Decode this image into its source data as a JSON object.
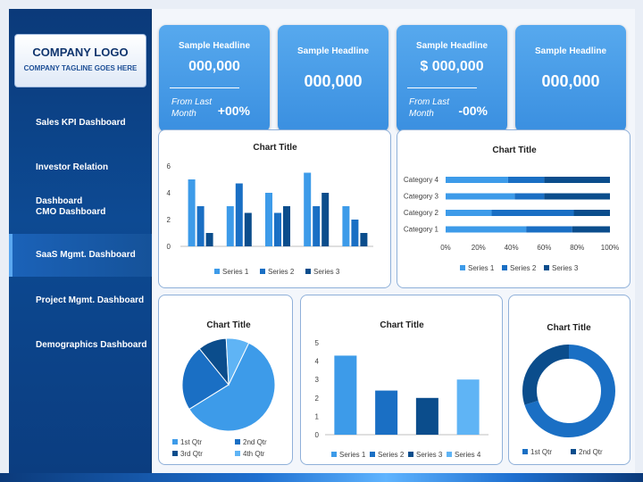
{
  "logo": {
    "title": "COMPANY LOGO",
    "tagline": "COMPANY TAGLINE GOES HERE"
  },
  "nav": [
    {
      "label": "Sales KPI Dashboard",
      "active": false
    },
    {
      "label": "Investor Relation Dashboard",
      "active": false
    },
    {
      "label": "CMO Dashboard",
      "active": false
    },
    {
      "label": "SaaS Mgmt. Dashboard",
      "active": true
    },
    {
      "label": "Project Mgmt. Dashboard",
      "active": false
    },
    {
      "label": "Demographics Dashboard",
      "active": false
    }
  ],
  "kpis": [
    {
      "headline": "Sample Headline",
      "value": "000,000",
      "sub": "From Last Month",
      "change": "+00%"
    },
    {
      "headline": "Sample Headline",
      "value": "000,000"
    },
    {
      "headline": "Sample Headline",
      "value": "$ 000,000",
      "sub": "From Last Month",
      "change": "-00%"
    },
    {
      "headline": "Sample Headline",
      "value": "000,000"
    }
  ],
  "colors": {
    "series1": "#3d9be9",
    "series2": "#1a6fc4",
    "series3": "#0b4d8c",
    "series4": "#5fb4f5"
  },
  "chart_data": [
    {
      "type": "bar",
      "title": "Chart Title",
      "categories": [
        "",
        "",
        "",
        "",
        ""
      ],
      "series": [
        {
          "name": "Series 1",
          "values": [
            5,
            3,
            4,
            5.5,
            3
          ]
        },
        {
          "name": "Series 2",
          "values": [
            3,
            4.7,
            2.5,
            3,
            2
          ]
        },
        {
          "name": "Series 3",
          "values": [
            1,
            2.5,
            3,
            4,
            1
          ]
        }
      ],
      "ylim": [
        0,
        6
      ],
      "yticks": [
        "0",
        "2",
        "4",
        "6"
      ],
      "legend": "bottom"
    },
    {
      "type": "bar",
      "orientation": "horizontal-stacked-100",
      "title": "Chart Title",
      "categories": [
        "Category 1",
        "Category 2",
        "Category 3",
        "Category 4"
      ],
      "series": [
        {
          "name": "Series 1",
          "values": [
            49,
            28,
            42,
            38
          ]
        },
        {
          "name": "Series 2",
          "values": [
            28,
            50,
            18,
            22
          ]
        },
        {
          "name": "Series 3",
          "values": [
            23,
            22,
            40,
            40
          ]
        }
      ],
      "xticks": [
        "0%",
        "20%",
        "40%",
        "60%",
        "80%",
        "100%"
      ],
      "legend": "bottom"
    },
    {
      "type": "pie",
      "title": "Chart Title",
      "labels": [
        "1st Qtr",
        "2nd Qtr",
        "3rd Qtr",
        "4th Qtr"
      ],
      "values": [
        59,
        23,
        10,
        8
      ],
      "legend": "bottom"
    },
    {
      "type": "bar",
      "title": "Chart Title",
      "categories": [
        "Series 1",
        "Series 2",
        "Series 3",
        "Series 4"
      ],
      "values": [
        4.3,
        2.4,
        2,
        3
      ],
      "ylim": [
        0,
        5
      ],
      "yticks": [
        "0",
        "1",
        "2",
        "3",
        "4",
        "5"
      ],
      "legend": "bottom"
    },
    {
      "type": "pie",
      "variant": "donut",
      "title": "Chart Title",
      "labels": [
        "1st Qtr",
        "2nd Qtr"
      ],
      "values": [
        70,
        30
      ],
      "legend": "bottom"
    }
  ]
}
